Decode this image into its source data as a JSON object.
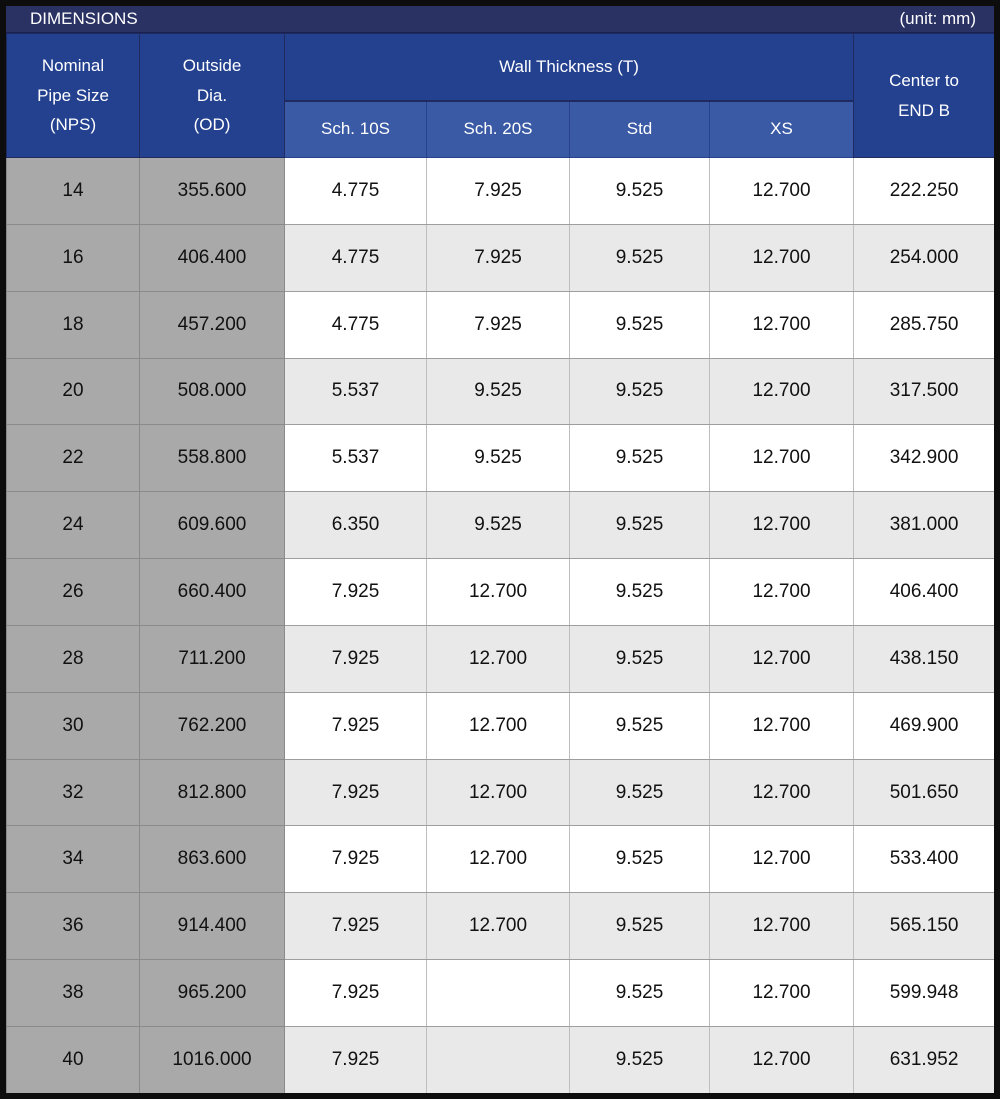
{
  "title_bar": {
    "title": "DIMENSIONS",
    "unit_label": "(unit: mm)"
  },
  "header": {
    "nps": "Nominal\nPipe Size\n(NPS)",
    "od": "Outside\nDia.\n(OD)",
    "wall_thickness": "Wall Thickness (T)",
    "sub_columns": [
      "Sch. 10S",
      "Sch. 20S",
      "Std",
      "XS"
    ],
    "center_to_end_b": "Center to\nEND B"
  },
  "row_keys": [
    "nps",
    "od",
    "sch_10s",
    "sch_20s",
    "std",
    "xs",
    "center_to_end_b"
  ],
  "rows": [
    {
      "nps": "14",
      "od": "355.600",
      "sch_10s": "4.775",
      "sch_20s": "7.925",
      "std": "9.525",
      "xs": "12.700",
      "center_to_end_b": "222.250"
    },
    {
      "nps": "16",
      "od": "406.400",
      "sch_10s": "4.775",
      "sch_20s": "7.925",
      "std": "9.525",
      "xs": "12.700",
      "center_to_end_b": "254.000"
    },
    {
      "nps": "18",
      "od": "457.200",
      "sch_10s": "4.775",
      "sch_20s": "7.925",
      "std": "9.525",
      "xs": "12.700",
      "center_to_end_b": "285.750"
    },
    {
      "nps": "20",
      "od": "508.000",
      "sch_10s": "5.537",
      "sch_20s": "9.525",
      "std": "9.525",
      "xs": "12.700",
      "center_to_end_b": "317.500"
    },
    {
      "nps": "22",
      "od": "558.800",
      "sch_10s": "5.537",
      "sch_20s": "9.525",
      "std": "9.525",
      "xs": "12.700",
      "center_to_end_b": "342.900"
    },
    {
      "nps": "24",
      "od": "609.600",
      "sch_10s": "6.350",
      "sch_20s": "9.525",
      "std": "9.525",
      "xs": "12.700",
      "center_to_end_b": "381.000"
    },
    {
      "nps": "26",
      "od": "660.400",
      "sch_10s": "7.925",
      "sch_20s": "12.700",
      "std": "9.525",
      "xs": "12.700",
      "center_to_end_b": "406.400"
    },
    {
      "nps": "28",
      "od": "711.200",
      "sch_10s": "7.925",
      "sch_20s": "12.700",
      "std": "9.525",
      "xs": "12.700",
      "center_to_end_b": "438.150"
    },
    {
      "nps": "30",
      "od": "762.200",
      "sch_10s": "7.925",
      "sch_20s": "12.700",
      "std": "9.525",
      "xs": "12.700",
      "center_to_end_b": "469.900"
    },
    {
      "nps": "32",
      "od": "812.800",
      "sch_10s": "7.925",
      "sch_20s": "12.700",
      "std": "9.525",
      "xs": "12.700",
      "center_to_end_b": "501.650"
    },
    {
      "nps": "34",
      "od": "863.600",
      "sch_10s": "7.925",
      "sch_20s": "12.700",
      "std": "9.525",
      "xs": "12.700",
      "center_to_end_b": "533.400"
    },
    {
      "nps": "36",
      "od": "914.400",
      "sch_10s": "7.925",
      "sch_20s": "12.700",
      "std": "9.525",
      "xs": "12.700",
      "center_to_end_b": "565.150"
    },
    {
      "nps": "38",
      "od": "965.200",
      "sch_10s": "7.925",
      "sch_20s": "",
      "std": "9.525",
      "xs": "12.700",
      "center_to_end_b": "599.948"
    },
    {
      "nps": "40",
      "od": "1016.000",
      "sch_10s": "7.925",
      "sch_20s": "",
      "std": "9.525",
      "xs": "12.700",
      "center_to_end_b": "631.952"
    }
  ],
  "colors": {
    "outer_border": "#0d0d0d",
    "title_bar_bg": "#2a3163",
    "header_bg": "#24418f",
    "subheader_bg": "#3a5aa5",
    "gray_column_bg": "#a9a9a9",
    "row_white": "#ffffff",
    "row_alt": "#e9e9e9",
    "header_text": "#ffffff",
    "data_text": "#111111"
  }
}
